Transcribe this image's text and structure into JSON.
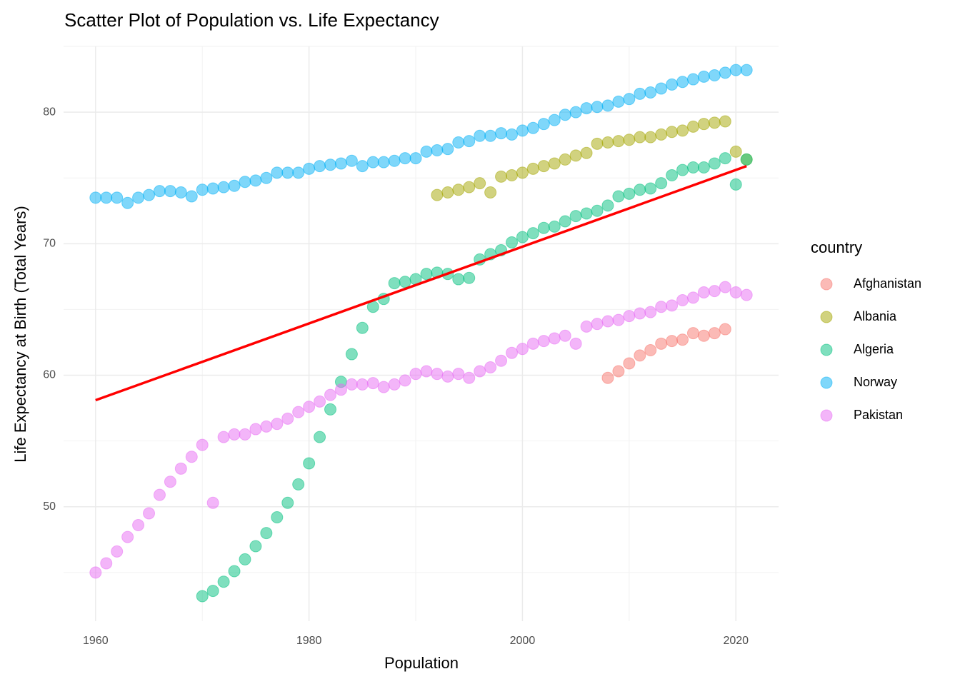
{
  "chart_data": {
    "type": "scatter",
    "title": "Scatter Plot of Population vs. Life Expectancy",
    "x_label": "Population",
    "y_label": "Life Expectancy at Birth (Total Years)",
    "legend_title": "country",
    "legend_position": "right",
    "grid": true,
    "xlim": [
      1957,
      2024
    ],
    "ylim": [
      41.3,
      85
    ],
    "xticks": [
      1960,
      1980,
      2000,
      2020
    ],
    "yticks": [
      50,
      60,
      70,
      80
    ],
    "minor_xticks": [
      1970,
      1990,
      2010
    ],
    "minor_yticks": [
      45,
      55,
      65,
      75,
      85
    ],
    "series": [
      {
        "name": "Afghanistan",
        "color": "#F8766D",
        "x": [
          2008,
          2009,
          2010,
          2011,
          2012,
          2013,
          2014,
          2015,
          2016,
          2017,
          2018,
          2019
        ],
        "values": [
          59.8,
          60.3,
          60.9,
          61.5,
          61.9,
          62.4,
          62.6,
          62.7,
          63.2,
          63.0,
          63.2,
          63.5
        ]
      },
      {
        "name": "Albania",
        "color": "#A3A500",
        "x": [
          1992,
          1993,
          1994,
          1995,
          1996,
          1997,
          1998,
          1999,
          2000,
          2001,
          2002,
          2003,
          2004,
          2005,
          2006,
          2007,
          2008,
          2009,
          2010,
          2011,
          2012,
          2013,
          2014,
          2015,
          2016,
          2017,
          2018,
          2019,
          2020,
          2021
        ],
        "values": [
          73.7,
          73.9,
          74.1,
          74.3,
          74.6,
          73.9,
          75.1,
          75.2,
          75.4,
          75.7,
          75.9,
          76.1,
          76.4,
          76.7,
          76.9,
          77.6,
          77.7,
          77.8,
          77.9,
          78.1,
          78.1,
          78.3,
          78.5,
          78.6,
          78.9,
          79.1,
          79.2,
          79.3,
          77.0,
          76.4
        ]
      },
      {
        "name": "Algeria",
        "color": "#00BF7D",
        "x": [
          1970,
          1971,
          1972,
          1973,
          1974,
          1975,
          1976,
          1977,
          1978,
          1979,
          1980,
          1981,
          1982,
          1983,
          1984,
          1985,
          1986,
          1987,
          1988,
          1989,
          1990,
          1991,
          1992,
          1993,
          1994,
          1995,
          1996,
          1997,
          1998,
          1999,
          2000,
          2001,
          2002,
          2003,
          2004,
          2005,
          2006,
          2007,
          2008,
          2009,
          2010,
          2011,
          2012,
          2013,
          2014,
          2015,
          2016,
          2017,
          2018,
          2019,
          2020,
          2021
        ],
        "values": [
          43.2,
          43.6,
          44.3,
          45.1,
          46.0,
          47.0,
          48.0,
          49.2,
          50.3,
          51.7,
          53.3,
          55.3,
          57.4,
          59.5,
          61.6,
          63.6,
          65.2,
          65.8,
          67.0,
          67.1,
          67.3,
          67.7,
          67.8,
          67.7,
          67.3,
          67.4,
          68.8,
          69.2,
          69.5,
          70.1,
          70.5,
          70.8,
          71.2,
          71.3,
          71.7,
          72.1,
          72.3,
          72.5,
          72.9,
          73.6,
          73.8,
          74.1,
          74.2,
          74.6,
          75.2,
          75.6,
          75.8,
          75.8,
          76.1,
          76.5,
          74.5,
          76.4
        ]
      },
      {
        "name": "Norway",
        "color": "#00B0F6",
        "x": [
          1960,
          1961,
          1962,
          1963,
          1964,
          1965,
          1966,
          1967,
          1968,
          1969,
          1970,
          1971,
          1972,
          1973,
          1974,
          1975,
          1976,
          1977,
          1978,
          1979,
          1980,
          1981,
          1982,
          1983,
          1984,
          1985,
          1986,
          1987,
          1988,
          1989,
          1990,
          1991,
          1992,
          1993,
          1994,
          1995,
          1996,
          1997,
          1998,
          1999,
          2000,
          2001,
          2002,
          2003,
          2004,
          2005,
          2006,
          2007,
          2008,
          2009,
          2010,
          2011,
          2012,
          2013,
          2014,
          2015,
          2016,
          2017,
          2018,
          2019,
          2020,
          2021
        ],
        "values": [
          73.5,
          73.5,
          73.5,
          73.1,
          73.5,
          73.7,
          74.0,
          74.0,
          73.9,
          73.6,
          74.1,
          74.2,
          74.3,
          74.4,
          74.7,
          74.8,
          75.0,
          75.4,
          75.4,
          75.4,
          75.7,
          75.9,
          76.0,
          76.1,
          76.3,
          75.9,
          76.2,
          76.2,
          76.3,
          76.5,
          76.5,
          77.0,
          77.1,
          77.2,
          77.7,
          77.8,
          78.2,
          78.2,
          78.4,
          78.3,
          78.6,
          78.8,
          79.1,
          79.4,
          79.8,
          80.0,
          80.3,
          80.4,
          80.5,
          80.8,
          81.0,
          81.4,
          81.5,
          81.8,
          82.1,
          82.3,
          82.5,
          82.7,
          82.8,
          83.0,
          83.2,
          83.2
        ]
      },
      {
        "name": "Pakistan",
        "color": "#E76BF3",
        "x": [
          1960,
          1961,
          1962,
          1963,
          1964,
          1965,
          1966,
          1967,
          1968,
          1969,
          1970,
          1971,
          1972,
          1973,
          1974,
          1975,
          1976,
          1977,
          1978,
          1979,
          1980,
          1981,
          1982,
          1983,
          1984,
          1985,
          1986,
          1987,
          1988,
          1989,
          1990,
          1991,
          1992,
          1993,
          1994,
          1995,
          1996,
          1997,
          1998,
          1999,
          2000,
          2001,
          2002,
          2003,
          2004,
          2005,
          2006,
          2007,
          2008,
          2009,
          2010,
          2011,
          2012,
          2013,
          2014,
          2015,
          2016,
          2017,
          2018,
          2019,
          2020,
          2021
        ],
        "values": [
          45.0,
          45.7,
          46.6,
          47.7,
          48.6,
          49.5,
          50.9,
          51.9,
          52.9,
          53.8,
          54.7,
          50.3,
          55.3,
          55.5,
          55.5,
          55.9,
          56.1,
          56.3,
          56.7,
          57.2,
          57.6,
          58.0,
          58.5,
          58.9,
          59.3,
          59.3,
          59.4,
          59.1,
          59.3,
          59.6,
          60.1,
          60.3,
          60.1,
          59.9,
          60.1,
          59.8,
          60.3,
          60.6,
          61.1,
          61.7,
          62.0,
          62.4,
          62.6,
          62.8,
          63.0,
          62.4,
          63.7,
          63.9,
          64.1,
          64.2,
          64.5,
          64.7,
          64.8,
          65.2,
          65.3,
          65.7,
          65.9,
          66.3,
          66.4,
          66.7,
          66.3,
          66.1
        ]
      }
    ],
    "trend_line": {
      "color": "#FF0000",
      "x": [
        1960,
        2021
      ],
      "values": [
        58.1,
        75.9
      ]
    }
  }
}
